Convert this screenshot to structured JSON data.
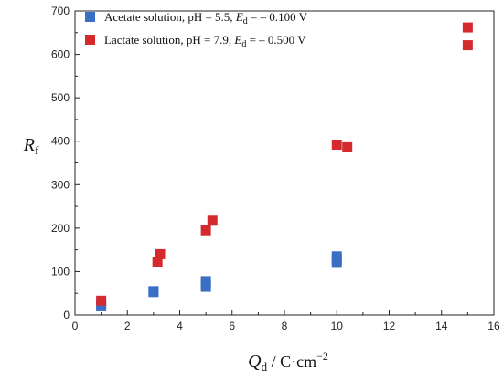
{
  "chart_data": {
    "type": "scatter",
    "title": "",
    "xlabel": {
      "main": "Q",
      "sub": "d",
      "unit": " / C·cm",
      "sup": "−2"
    },
    "ylabel": {
      "main": "R",
      "sub": "f"
    },
    "xlim": [
      0,
      16
    ],
    "ylim": [
      0,
      700
    ],
    "xticks": [
      0,
      2,
      4,
      6,
      8,
      10,
      12,
      14,
      16
    ],
    "yticks": [
      0,
      100,
      200,
      300,
      400,
      500,
      600,
      700
    ],
    "grid": false,
    "legend_position": "top-left",
    "series": [
      {
        "name": "Acetate solution",
        "legend_parts": {
          "prefix": "Acetate solution, pH = 5.5, ",
          "e_main": "E",
          "e_sub": "d",
          "suffix": " = – 0.100 V"
        },
        "color": "#3a6fc4",
        "points": [
          [
            1,
            20
          ],
          [
            1,
            25
          ],
          [
            3,
            53
          ],
          [
            3,
            55
          ],
          [
            5,
            65
          ],
          [
            5,
            70
          ],
          [
            5,
            78
          ],
          [
            10,
            120
          ],
          [
            10,
            128
          ],
          [
            10,
            135
          ]
        ]
      },
      {
        "name": "Lactate solution",
        "legend_parts": {
          "prefix": "Lactate solution, pH = 7.9, ",
          "e_main": "E",
          "e_sub": "d",
          "suffix": " = – 0.500 V"
        },
        "color": "#d42a2e",
        "points": [
          [
            1,
            33
          ],
          [
            3.15,
            122
          ],
          [
            3.25,
            140
          ],
          [
            5,
            195
          ],
          [
            5.25,
            217
          ],
          [
            10,
            392
          ],
          [
            10.4,
            386
          ],
          [
            15,
            662
          ],
          [
            15,
            621
          ]
        ]
      }
    ]
  }
}
